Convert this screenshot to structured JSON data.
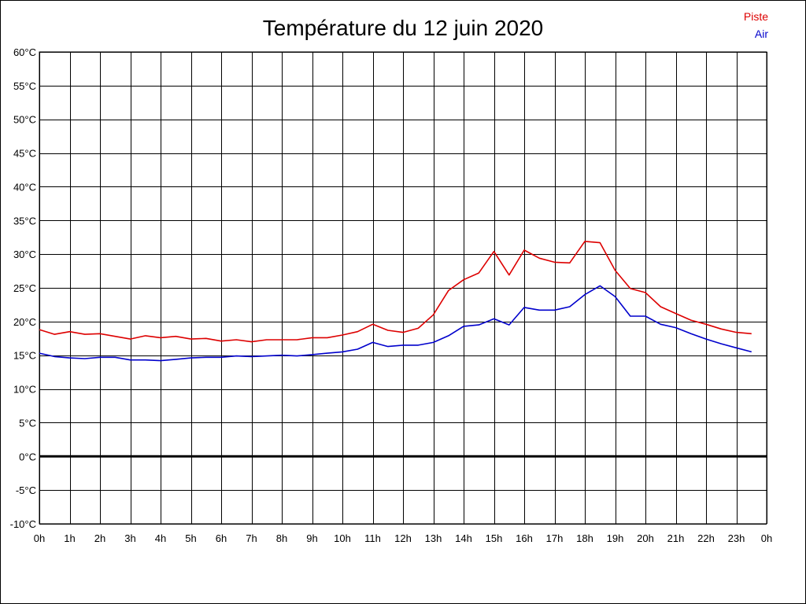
{
  "chart_data": {
    "type": "line",
    "title": "Température du 12 juin 2020",
    "xlabel": "",
    "ylabel": "",
    "x_ticks": [
      "0h",
      "1h",
      "2h",
      "3h",
      "4h",
      "5h",
      "6h",
      "7h",
      "8h",
      "9h",
      "10h",
      "11h",
      "12h",
      "13h",
      "14h",
      "15h",
      "16h",
      "17h",
      "18h",
      "19h",
      "20h",
      "21h",
      "22h",
      "23h",
      "0h"
    ],
    "y_ticks": [
      "-10°C",
      "-5°C",
      "0°C",
      "5°C",
      "10°C",
      "15°C",
      "20°C",
      "25°C",
      "30°C",
      "35°C",
      "40°C",
      "45°C",
      "50°C",
      "55°C",
      "60°C"
    ],
    "xlim": [
      0,
      24
    ],
    "ylim": [
      -10,
      60
    ],
    "grid": true,
    "legend_position": "top-right",
    "zero_line": true,
    "x": [
      0,
      0.5,
      1,
      1.5,
      2,
      2.5,
      3,
      3.5,
      4,
      4.5,
      5,
      5.5,
      6,
      6.5,
      7,
      7.5,
      8,
      8.5,
      9,
      9.5,
      10,
      10.5,
      11,
      11.5,
      12,
      12.5,
      13,
      13.5,
      14,
      14.5,
      15,
      15.5,
      16,
      16.5,
      17,
      17.5,
      18,
      18.5,
      19,
      19.5,
      20,
      20.5,
      21,
      21.5,
      22,
      22.5,
      23,
      23.5
    ],
    "series": [
      {
        "name": "Piste",
        "color": "#dd0000",
        "values": [
          18.8,
          18.1,
          18.5,
          18.1,
          18.2,
          17.8,
          17.4,
          17.9,
          17.6,
          17.8,
          17.4,
          17.5,
          17.1,
          17.3,
          17.0,
          17.3,
          17.3,
          17.3,
          17.6,
          17.6,
          18.0,
          18.5,
          19.6,
          18.7,
          18.4,
          19.0,
          21.0,
          24.6,
          26.2,
          27.2,
          30.4,
          26.9,
          30.6,
          29.4,
          28.8,
          28.7,
          31.9,
          31.7,
          27.6,
          24.9,
          24.3,
          22.2,
          21.2,
          20.2,
          19.6,
          18.9,
          18.4,
          18.2
        ]
      },
      {
        "name": "Air",
        "color": "#0000cc",
        "values": [
          15.3,
          14.8,
          14.6,
          14.5,
          14.7,
          14.7,
          14.3,
          14.3,
          14.2,
          14.4,
          14.6,
          14.7,
          14.7,
          14.9,
          14.8,
          14.9,
          15.0,
          14.9,
          15.1,
          15.3,
          15.5,
          15.9,
          16.9,
          16.3,
          16.5,
          16.5,
          16.9,
          17.9,
          19.3,
          19.5,
          20.4,
          19.5,
          22.1,
          21.7,
          21.7,
          22.2,
          24.0,
          25.3,
          23.7,
          20.8,
          20.8,
          19.6,
          19.1,
          18.2,
          17.4,
          16.7,
          16.1,
          15.5
        ]
      }
    ]
  }
}
